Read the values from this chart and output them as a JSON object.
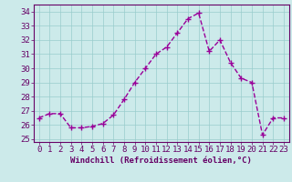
{
  "x": [
    0,
    1,
    2,
    3,
    4,
    5,
    6,
    7,
    8,
    9,
    10,
    11,
    12,
    13,
    14,
    15,
    16,
    17,
    18,
    19,
    20,
    21,
    22,
    23
  ],
  "y": [
    26.5,
    26.8,
    26.8,
    25.8,
    25.8,
    25.9,
    26.1,
    26.7,
    27.8,
    29.0,
    30.0,
    31.0,
    31.5,
    32.5,
    33.5,
    33.9,
    31.2,
    32.0,
    30.4,
    29.3,
    29.0,
    25.3,
    26.5,
    26.5
  ],
  "line_color": "#990099",
  "marker": "+",
  "marker_size": 4,
  "marker_lw": 1.0,
  "bg_color": "#cceaea",
  "grid_color": "#99cccc",
  "xlabel": "Windchill (Refroidissement éolien,°C)",
  "xlabel_fontsize": 6.5,
  "tick_fontsize": 6.5,
  "ylim": [
    24.8,
    34.5
  ],
  "yticks": [
    25,
    26,
    27,
    28,
    29,
    30,
    31,
    32,
    33,
    34
  ],
  "xlim": [
    -0.5,
    23.5
  ],
  "xticks": [
    0,
    1,
    2,
    3,
    4,
    5,
    6,
    7,
    8,
    9,
    10,
    11,
    12,
    13,
    14,
    15,
    16,
    17,
    18,
    19,
    20,
    21,
    22,
    23
  ],
  "axis_color": "#660066",
  "line_width": 1.0
}
